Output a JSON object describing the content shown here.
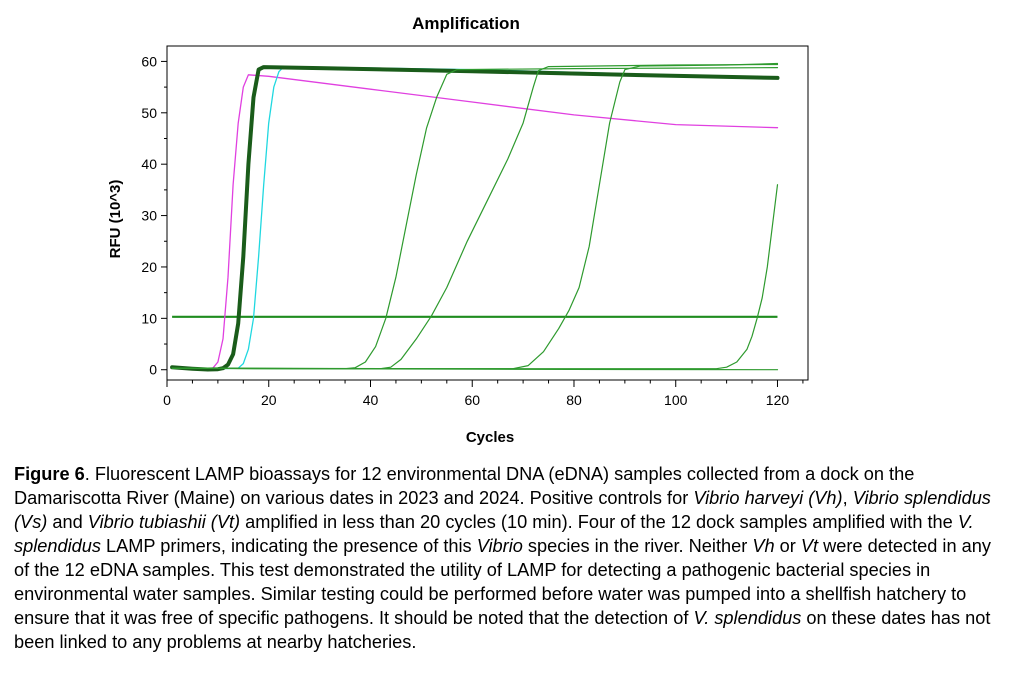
{
  "chart_data": {
    "type": "line",
    "title": "Amplification",
    "xlabel": "Cycles",
    "ylabel": "RFU (10^3)",
    "xlim": [
      0,
      126
    ],
    "ylim": [
      -2,
      63
    ],
    "xticks": [
      0,
      20,
      40,
      60,
      80,
      100,
      120
    ],
    "yticks": [
      0,
      10,
      20,
      30,
      40,
      50,
      60
    ],
    "grid": false,
    "threshold": {
      "y": 10.3,
      "x": [
        1,
        120
      ],
      "color": "#1e8c1e"
    },
    "series": [
      {
        "color": "#e040e0",
        "width": 1.3,
        "points": [
          [
            1,
            0.4
          ],
          [
            6,
            0.1
          ],
          [
            9,
            0.3
          ],
          [
            10,
            1.5
          ],
          [
            11,
            6
          ],
          [
            12,
            18
          ],
          [
            13,
            36
          ],
          [
            14,
            48
          ],
          [
            15,
            55
          ],
          [
            16,
            57.4
          ],
          [
            20,
            57.1
          ],
          [
            40,
            54.6
          ],
          [
            60,
            52.1
          ],
          [
            80,
            49.6
          ],
          [
            100,
            47.7
          ],
          [
            120,
            47.1
          ]
        ]
      },
      {
        "color": "#20d8e0",
        "width": 1.3,
        "points": [
          [
            1,
            0.3
          ],
          [
            10,
            0.2
          ],
          [
            14,
            0.3
          ],
          [
            15,
            1.2
          ],
          [
            16,
            4
          ],
          [
            17,
            10
          ],
          [
            18,
            22
          ],
          [
            19,
            36
          ],
          [
            20,
            48
          ],
          [
            21,
            55
          ],
          [
            22,
            58
          ],
          [
            23,
            59
          ],
          [
            30,
            58.9
          ],
          [
            60,
            58.4
          ],
          [
            90,
            57.6
          ],
          [
            120,
            56.9
          ]
        ]
      },
      {
        "color": "#1a5c1a",
        "width": 4,
        "points": [
          [
            1,
            0.5
          ],
          [
            5,
            0.2
          ],
          [
            8,
            0.05
          ],
          [
            10,
            0.1
          ],
          [
            11,
            0.3
          ],
          [
            12,
            1
          ],
          [
            13,
            3
          ],
          [
            14,
            9
          ],
          [
            15,
            22
          ],
          [
            16,
            40
          ],
          [
            17,
            53
          ],
          [
            18,
            58.4
          ],
          [
            19,
            58.9
          ],
          [
            30,
            58.7
          ],
          [
            60,
            58.1
          ],
          [
            90,
            57.4
          ],
          [
            120,
            56.8
          ]
        ]
      },
      {
        "color": "#2e9a2e",
        "width": 1.2,
        "points": [
          [
            1,
            0.3
          ],
          [
            20,
            0.2
          ],
          [
            35,
            0.2
          ],
          [
            37,
            0.4
          ],
          [
            39,
            1.5
          ],
          [
            41,
            4.5
          ],
          [
            43,
            10
          ],
          [
            45,
            18
          ],
          [
            47,
            28
          ],
          [
            49,
            38
          ],
          [
            51,
            47
          ],
          [
            53,
            53
          ],
          [
            55,
            57.5
          ],
          [
            57,
            58.4
          ],
          [
            80,
            58.6
          ],
          [
            100,
            58.7
          ],
          [
            120,
            58.8
          ]
        ]
      },
      {
        "color": "#2e9a2e",
        "width": 1.2,
        "points": [
          [
            1,
            0.3
          ],
          [
            30,
            0.2
          ],
          [
            42,
            0.2
          ],
          [
            44,
            0.5
          ],
          [
            46,
            2
          ],
          [
            49,
            6
          ],
          [
            52,
            10.5
          ],
          [
            55,
            16
          ],
          [
            59,
            25
          ],
          [
            63,
            33
          ],
          [
            67,
            41
          ],
          [
            70,
            48
          ],
          [
            72,
            55
          ],
          [
            73,
            58.2
          ],
          [
            75,
            59
          ],
          [
            100,
            59.3
          ],
          [
            120,
            59.4
          ]
        ]
      },
      {
        "color": "#2e9a2e",
        "width": 1.2,
        "points": [
          [
            1,
            0.3
          ],
          [
            40,
            0.2
          ],
          [
            68,
            0.2
          ],
          [
            71,
            0.8
          ],
          [
            74,
            3.5
          ],
          [
            77,
            8
          ],
          [
            79,
            11.5
          ],
          [
            81,
            16
          ],
          [
            83,
            24
          ],
          [
            85,
            36
          ],
          [
            87,
            48
          ],
          [
            89,
            56
          ],
          [
            90,
            58.4
          ],
          [
            93,
            59.1
          ],
          [
            110,
            59.3
          ],
          [
            120,
            59.6
          ]
        ]
      },
      {
        "color": "#2e9a2e",
        "width": 1.2,
        "points": [
          [
            1,
            0.3
          ],
          [
            60,
            0.2
          ],
          [
            108,
            0.2
          ],
          [
            110,
            0.5
          ],
          [
            112,
            1.5
          ],
          [
            114,
            4
          ],
          [
            115,
            6.5
          ],
          [
            116,
            10
          ],
          [
            117,
            14
          ],
          [
            118,
            20
          ],
          [
            119,
            28
          ],
          [
            120,
            36
          ]
        ]
      },
      {
        "color": "#2e9a2e",
        "width": 1.2,
        "points": [
          [
            1,
            0.3
          ],
          [
            60,
            0.1
          ],
          [
            120,
            0
          ]
        ]
      }
    ]
  },
  "caption": {
    "label": "Figure 6",
    "text": ". Fluorescent LAMP bioassays for 12 environmental DNA (eDNA) samples collected from a dock on the Damariscotta River (Maine) on various dates in 2023 and 2024. Positive controls for ",
    "vh": "Vibrio harveyi (Vh)",
    "sep1": ", ",
    "vs": "Vibrio splendidus (Vs)",
    "and1": " and ",
    "vt": "Vibrio tubiashii (Vt)",
    "text2": " amplified in less than 20 cycles (10 min). Four of the 12 dock samples amplified with the ",
    "vsp1": "V. splendidus",
    "text3": " LAMP primers, indicating the presence of this ",
    "vibrio": "Vibrio",
    "text4": " species in the river. Neither ",
    "vh_short": "Vh",
    "or1": " or ",
    "vt_short": "Vt",
    "text5": " were detected in any of the 12 eDNA samples. This test demonstrated the utility of LAMP for detecting a pathogenic bacterial species in environmental water samples. Similar testing could be performed before water was pumped into a shellfish hatchery to ensure that it was free of specific pathogens. It should be noted that the detection of ",
    "vsp2": "V. splendidus",
    "text6": " on these dates has not been linked to any problems at nearby hatcheries."
  }
}
